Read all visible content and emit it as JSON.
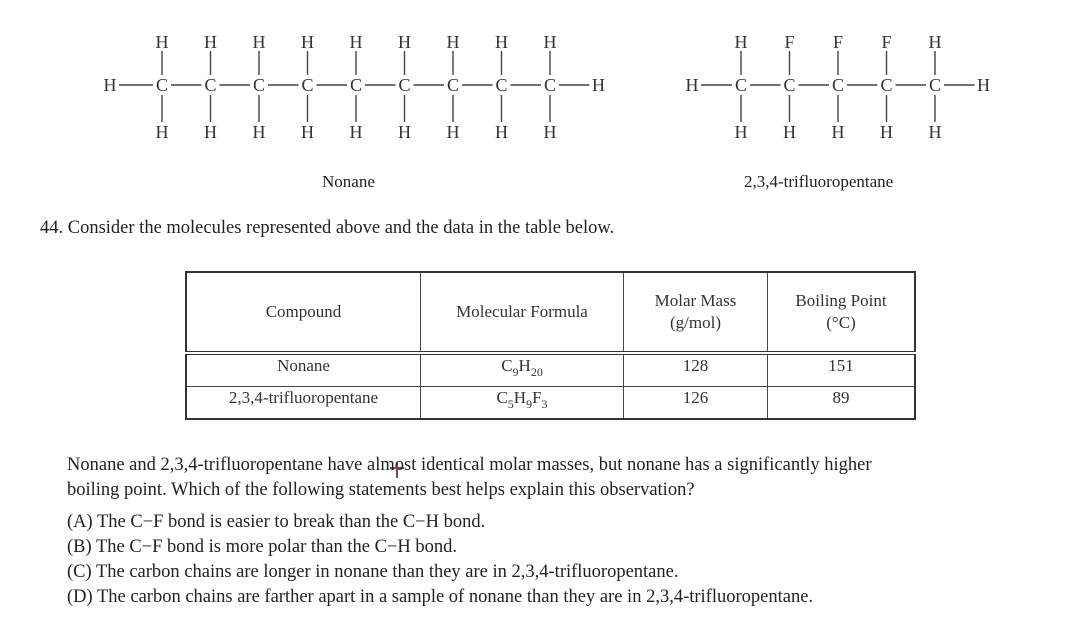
{
  "molecules": [
    {
      "name": "Nonane",
      "top": [
        "H",
        "H",
        "H",
        "H",
        "H",
        "H",
        "H",
        "H",
        "H"
      ],
      "bottom": [
        "H",
        "H",
        "H",
        "H",
        "H",
        "H",
        "H",
        "H",
        "H"
      ],
      "left": "H",
      "right": "H",
      "carbon": "C"
    },
    {
      "name": "2,3,4-trifluoropentane",
      "top": [
        "H",
        "F",
        "F",
        "F",
        "H"
      ],
      "bottom": [
        "H",
        "H",
        "H",
        "H",
        "H"
      ],
      "left": "H",
      "right": "H",
      "carbon": "C"
    }
  ],
  "question": {
    "intro": "44. Consider the molecules represented above and the data in the table below.",
    "body_line1": "Nonane and 2,3,4-trifluoropentane have almost identical molar masses, but nonane has a significantly higher",
    "body_line2": "boiling point. Which of the following statements best helps explain this observation?",
    "options": [
      "(A)  The C−F bond is easier to break than the C−H bond.",
      "(B)  The C−F bond is more polar than the C−H bond.",
      "(C)  The carbon chains are longer in nonane than they are in 2,3,4-trifluoropentane.",
      "(D)  The carbon chains are farther apart in a sample of nonane than they are in 2,3,4-trifluoropentane."
    ]
  },
  "table": {
    "headers": [
      "Compound",
      "Molecular Formula",
      "Molar Mass\n(g/mol)",
      "Boiling Point\n(°C)"
    ],
    "header_mass": [
      "Molar Mass",
      "(g/mol)"
    ],
    "header_bp": [
      "Boiling Point",
      "(°C)"
    ],
    "rows": [
      {
        "compound": "Nonane",
        "formula": [
          [
            "C",
            "9"
          ],
          [
            "H",
            "20"
          ]
        ],
        "molar_mass": "128",
        "boiling_point": "151"
      },
      {
        "compound": "2,3,4-trifluoropentane",
        "formula": [
          [
            "C",
            "5"
          ],
          [
            "H",
            "9"
          ],
          [
            "F",
            "3"
          ]
        ],
        "molar_mass": "126",
        "boiling_point": "89"
      }
    ]
  },
  "cursor_color": "#e02020"
}
